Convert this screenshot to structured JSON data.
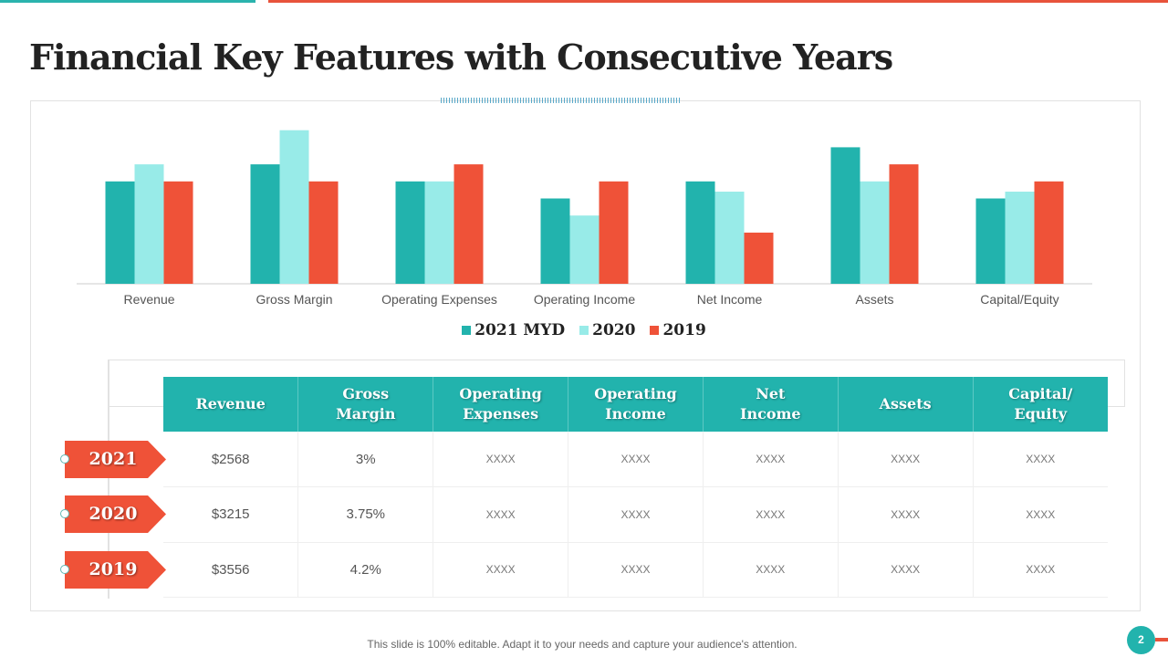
{
  "slide": {
    "title": "Financial Key Features with Consecutive Years",
    "footer_note": "This slide is 100% editable. Adapt it to your needs and capture your audience's attention.",
    "page_number": "2"
  },
  "colors": {
    "teal": "#22b3ad",
    "light_teal": "#98ebe8",
    "red": "#ef5238",
    "accent_top_left": "#2ab3ad",
    "accent_top_right": "#e8533b"
  },
  "chart_data": {
    "type": "bar",
    "title": "",
    "xlabel": "",
    "ylabel": "",
    "grid": false,
    "legend_position": "bottom",
    "categories": [
      "Revenue",
      "Gross Margin",
      "Operating Expenses",
      "Operating Income",
      "Net Income",
      "Assets",
      "Capital/Equity"
    ],
    "series": [
      {
        "name": "2021 MYD",
        "color": "#22b3ad",
        "values": [
          6,
          7,
          6,
          5,
          6,
          8,
          5
        ]
      },
      {
        "name": "2020",
        "color": "#98ebe8",
        "values": [
          7,
          9,
          6,
          4,
          5.4,
          6,
          5.4
        ]
      },
      {
        "name": "2019",
        "color": "#ef5238",
        "values": [
          6,
          6,
          7,
          6,
          3,
          7,
          6
        ]
      }
    ],
    "ylim": [
      0,
      9
    ]
  },
  "table": {
    "headers": [
      [
        "Revenue"
      ],
      [
        "Gross",
        "Margin"
      ],
      [
        "Operating",
        "Expenses"
      ],
      [
        "Operating",
        "Income"
      ],
      [
        "Net",
        "Income"
      ],
      [
        "Assets"
      ],
      [
        "Capital/",
        "Equity"
      ]
    ],
    "rows": [
      {
        "year": "2021",
        "cells": [
          "$2568",
          "3%",
          "XXXX",
          "XXXX",
          "XXXX",
          "XXXX",
          "XXXX"
        ]
      },
      {
        "year": "2020",
        "cells": [
          "$3215",
          "3.75%",
          "XXXX",
          "XXXX",
          "XXXX",
          "XXXX",
          "XXXX"
        ]
      },
      {
        "year": "2019",
        "cells": [
          "$3556",
          "4.2%",
          "XXXX",
          "XXXX",
          "XXXX",
          "XXXX",
          "XXXX"
        ]
      }
    ]
  }
}
